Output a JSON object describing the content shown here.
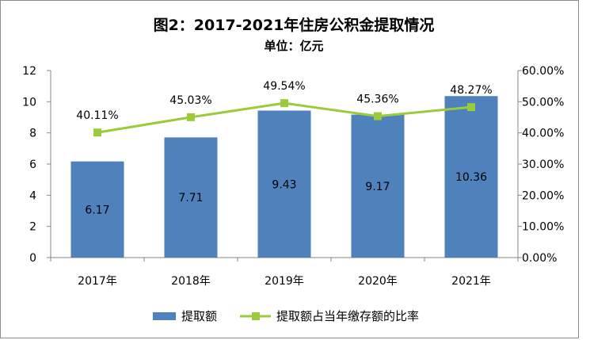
{
  "chart_data": {
    "type": "bar",
    "title": "图2：2017-2021年住房公积金提取情况",
    "subtitle": "单位：亿元",
    "categories": [
      "2017年",
      "2018年",
      "2019年",
      "2020年",
      "2021年"
    ],
    "series": [
      {
        "name": "提取额",
        "type": "bar",
        "axis": "left",
        "color": "#4f81bd",
        "values": [
          6.17,
          7.71,
          9.43,
          9.17,
          10.36
        ],
        "labels": [
          "6.17",
          "7.71",
          "9.43",
          "9.17",
          "10.36"
        ]
      },
      {
        "name": "提取额占当年缴存额的比率",
        "type": "line",
        "axis": "right",
        "color": "#9bcb3b",
        "values": [
          40.11,
          45.03,
          49.54,
          45.36,
          48.27
        ],
        "labels": [
          "40.11%",
          "45.03%",
          "49.54%",
          "45.36%",
          "48.27%"
        ]
      }
    ],
    "y_left": {
      "ylim": [
        0,
        12
      ],
      "ticks": [
        "0",
        "2",
        "4",
        "6",
        "8",
        "10",
        "12"
      ]
    },
    "y_right": {
      "ylim": [
        0,
        60
      ],
      "ticks": [
        "0.00%",
        "10.00%",
        "20.00%",
        "30.00%",
        "40.00%",
        "50.00%",
        "60.00%"
      ]
    },
    "grid": false,
    "legend_position": "bottom"
  }
}
